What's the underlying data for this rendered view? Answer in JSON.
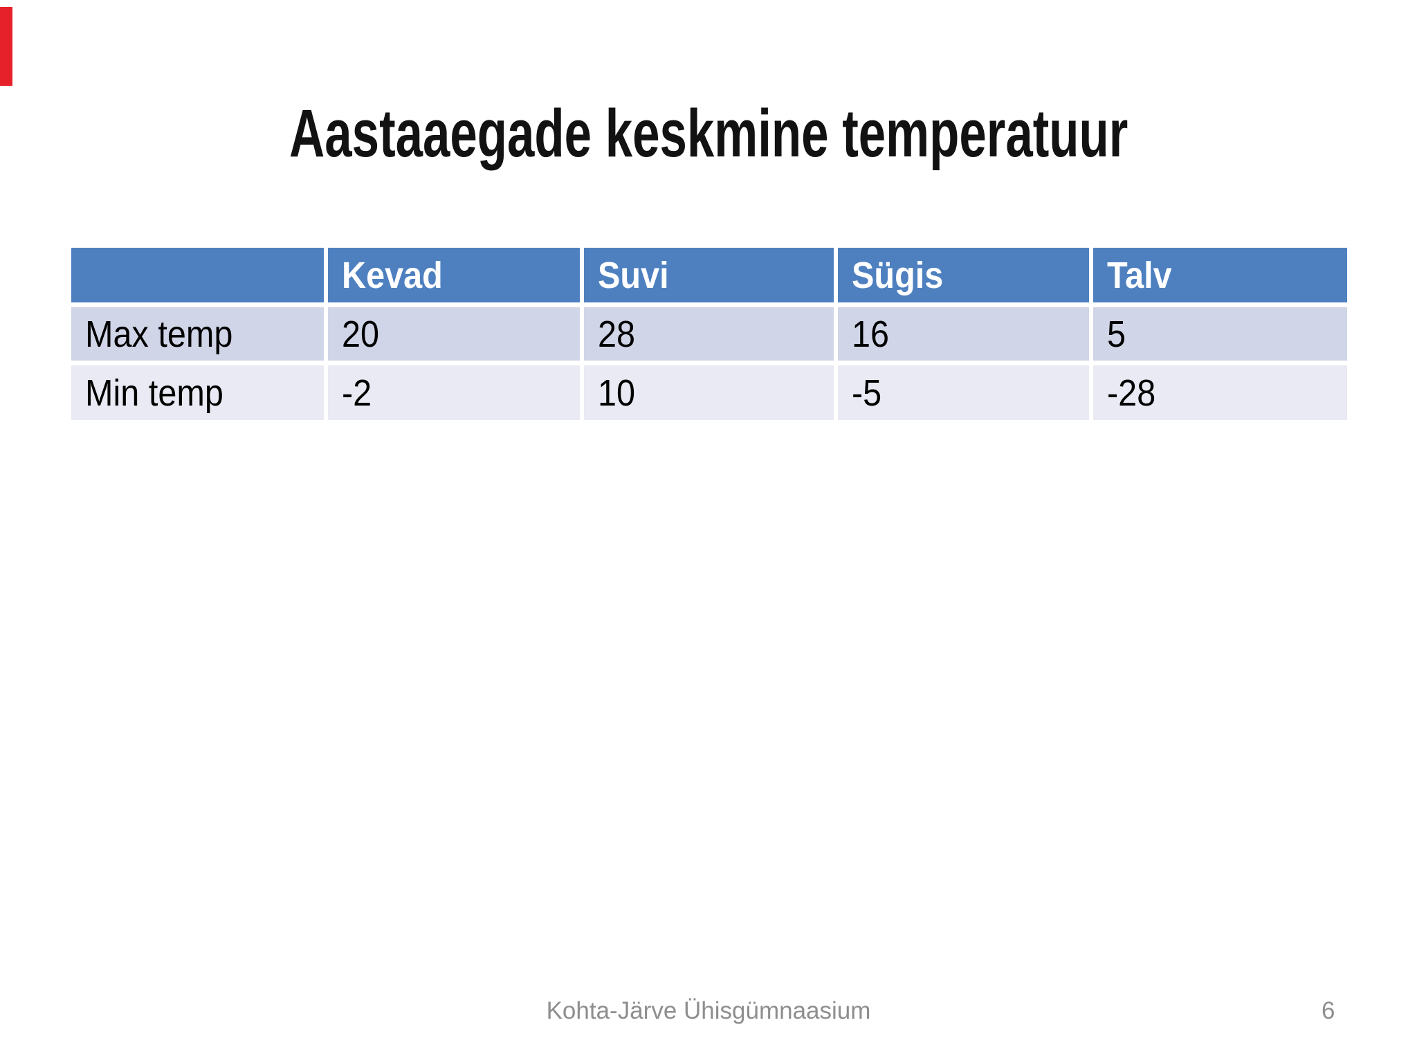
{
  "slide": {
    "title": "Aastaaegade keskmine temperatuur",
    "table": {
      "columns": [
        "",
        "Kevad",
        "Suvi",
        "Sügis",
        "Talv"
      ],
      "rows": [
        {
          "label": "Max temp",
          "values": [
            "20",
            "28",
            "16",
            "5"
          ]
        },
        {
          "label": "Min temp",
          "values": [
            "-2",
            "10",
            "-5",
            "-28"
          ]
        }
      ]
    },
    "footer": {
      "text": "Kohta-Järve Ühisgümnaasium",
      "page_number": "6"
    }
  },
  "colors": {
    "header_bg": "#4e80c0",
    "row_band_1": "#d0d5e7",
    "row_band_2": "#e9eaf3",
    "footer_gray": "#8e8e8e",
    "edge_marker_red": "#e62129",
    "title_black": "#121212"
  }
}
